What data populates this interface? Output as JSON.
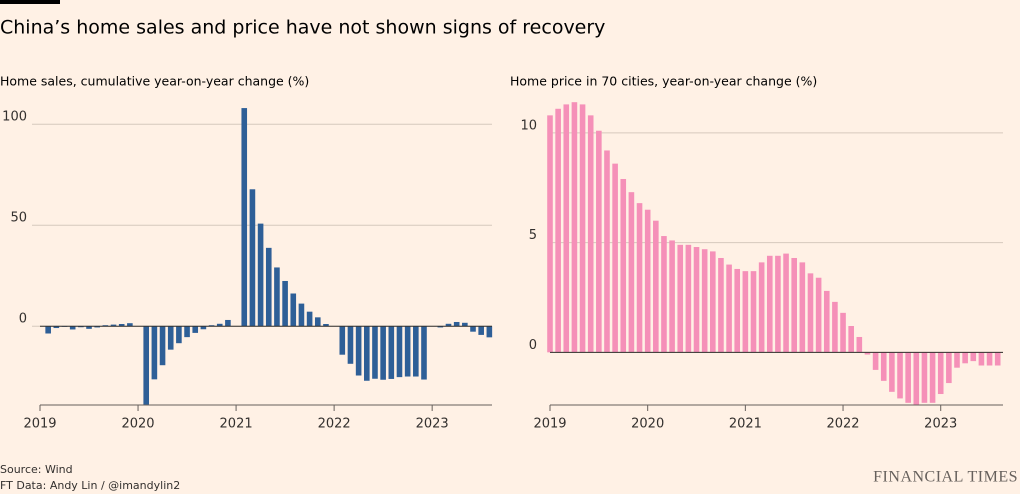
{
  "title": "China’s home sales and price have not shown signs of recovery",
  "source": "Source: Wind",
  "credit": "FT Data: Andy Lin / @imandylin2",
  "brand": "FINANCIAL TIMES",
  "chart_data": [
    {
      "type": "bar",
      "title": "Home sales, cumulative year-on-year change (%)",
      "color": "#2e5f97",
      "categories": [
        "2019",
        null,
        null,
        null,
        null,
        null,
        null,
        null,
        null,
        null,
        null,
        null,
        "2020",
        null,
        null,
        null,
        null,
        null,
        null,
        null,
        null,
        null,
        null,
        null,
        "2021",
        null,
        null,
        null,
        null,
        null,
        null,
        null,
        null,
        null,
        null,
        null,
        "2022",
        null,
        null,
        null,
        null,
        null,
        null,
        null,
        null,
        null,
        null,
        null,
        "2023",
        null,
        null,
        null,
        null,
        null,
        null,
        null
      ],
      "values": [
        null,
        -3.6,
        -0.9,
        -0.3,
        -1.6,
        -0.5,
        -1.3,
        -0.6,
        0.5,
        0.8,
        1.1,
        1.5,
        null,
        -39.9,
        -26.3,
        -19.3,
        -11.6,
        -8.4,
        -5.4,
        -3.3,
        -1.5,
        0.5,
        1.2,
        3.1,
        null,
        108,
        67.8,
        50.8,
        38.8,
        29.1,
        22.4,
        16.2,
        11.2,
        7.2,
        4.4,
        1.1,
        null,
        -14.1,
        -18.6,
        -24.4,
        -27.0,
        -26.0,
        -26.5,
        -26.1,
        -25.2,
        -24.9,
        -24.9,
        -26.4,
        null,
        -0.6,
        1.2,
        2.1,
        1.7,
        -2.7,
        -4.3,
        -5.5
      ],
      "ylim": [
        -39,
        112
      ],
      "yticks": [
        0,
        50,
        100
      ],
      "grid": true
    },
    {
      "type": "bar",
      "title": "Home price in 70 cities, year-on-year change (%)",
      "color": "#f590b8",
      "categories": [
        "2019",
        null,
        null,
        null,
        null,
        null,
        null,
        null,
        null,
        null,
        null,
        null,
        "2020",
        null,
        null,
        null,
        null,
        null,
        null,
        null,
        null,
        null,
        null,
        null,
        "2021",
        null,
        null,
        null,
        null,
        null,
        null,
        null,
        null,
        null,
        null,
        null,
        "2022",
        null,
        null,
        null,
        null,
        null,
        null,
        null,
        null,
        null,
        null,
        null,
        "2023",
        null,
        null,
        null,
        null,
        null,
        null,
        null
      ],
      "values": [
        10.8,
        11.1,
        11.3,
        11.4,
        11.3,
        10.8,
        10.1,
        9.2,
        8.6,
        7.9,
        7.3,
        6.8,
        6.5,
        6.0,
        5.3,
        5.1,
        4.9,
        4.9,
        4.8,
        4.7,
        4.6,
        4.3,
        4.0,
        3.8,
        3.7,
        3.7,
        4.1,
        4.4,
        4.4,
        4.5,
        4.3,
        4.1,
        3.6,
        3.4,
        2.8,
        2.3,
        1.8,
        1.2,
        0.7,
        -0.1,
        -0.8,
        -1.3,
        -1.8,
        -2.1,
        -2.3,
        -2.4,
        -2.3,
        -2.3,
        -1.9,
        -1.4,
        -0.7,
        -0.5,
        -0.4,
        -0.6,
        -0.6,
        -0.6
      ],
      "ylim": [
        -2.4,
        11.5
      ],
      "yticks": [
        0,
        5,
        10
      ],
      "grid": true
    }
  ]
}
